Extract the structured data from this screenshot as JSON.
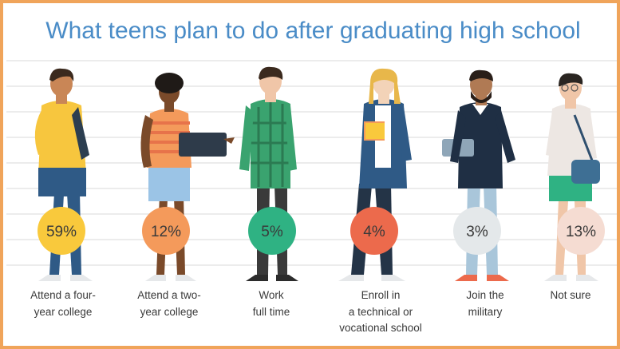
{
  "title": "What teens plan to do after graduating high school",
  "colors": {
    "border": "#f0a45a",
    "title": "#4a8cc7",
    "grid": "#e6e6e6",
    "text": "#3a3a3a"
  },
  "chart_data": {
    "type": "bar",
    "title": "What teens plan to do after graduating high school",
    "categories": [
      "Attend a four-year college",
      "Attend a two-year college",
      "Work full time",
      "Enroll in a technical or vocational school",
      "Join the military",
      "Not sure"
    ],
    "values": [
      59,
      12,
      5,
      4,
      3,
      13
    ],
    "value_labels": [
      "59%",
      "12%",
      "5%",
      "4%",
      "3%",
      "13%"
    ],
    "unit": "%",
    "bubble_colors": [
      "#f9c93c",
      "#f49a5b",
      "#2fb283",
      "#ec6a4c",
      "#e4e8ea",
      "#f5dcd2"
    ],
    "grid": true,
    "legend": "none"
  },
  "labels": [
    {
      "line1": "Attend a four-",
      "line2": "year college",
      "line3": ""
    },
    {
      "line1": "Attend a two-",
      "line2": "year college",
      "line3": ""
    },
    {
      "line1": "Work",
      "line2": "full time",
      "line3": ""
    },
    {
      "line1": "Enroll in",
      "line2": "a technical or",
      "line3": "vocational school"
    },
    {
      "line1": "Join the",
      "line2": "military",
      "line3": ""
    },
    {
      "line1": "Not sure",
      "line2": "",
      "line3": ""
    }
  ],
  "figures": [
    "student-with-backpack",
    "student-with-laptop",
    "worker-in-plaid-shirt",
    "student-with-books",
    "man-with-tablet",
    "girl-with-bag"
  ]
}
